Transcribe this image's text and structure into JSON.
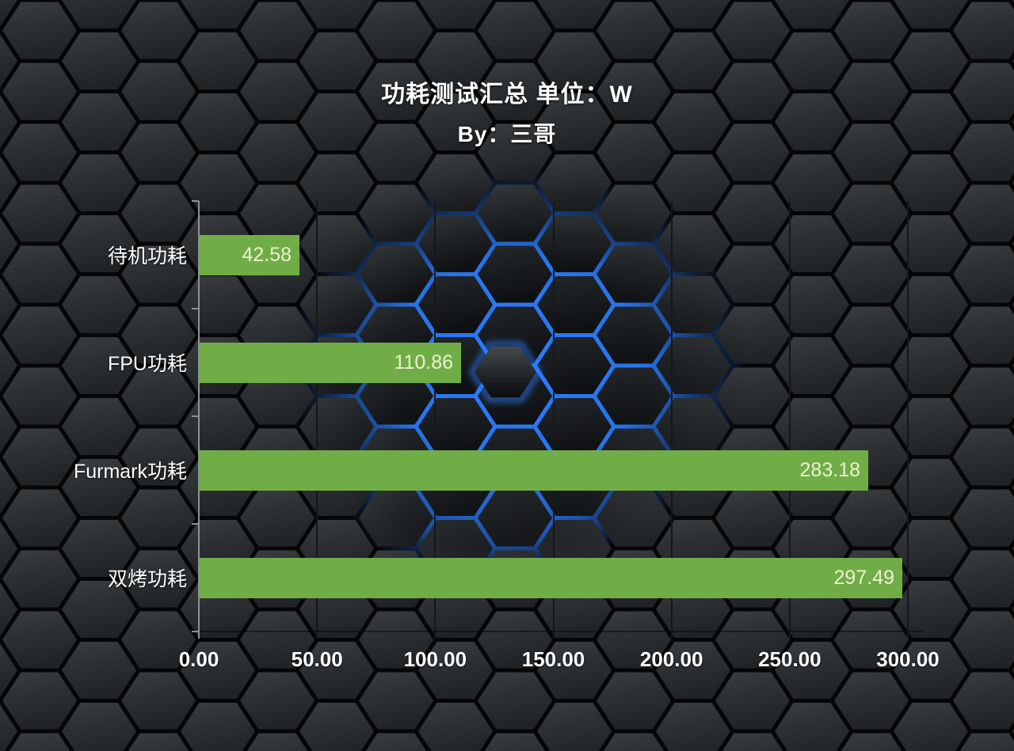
{
  "title": "功耗测试汇总 单位：W",
  "subtitle": "By：三哥",
  "chart_data": {
    "type": "bar",
    "orientation": "horizontal",
    "title": "功耗测试汇总 单位：W",
    "byline": "By：三哥",
    "unit": "W",
    "categories": [
      "待机功耗",
      "FPU功耗",
      "Furmark功耗",
      "双烤功耗"
    ],
    "values": [
      42.58,
      110.86,
      283.18,
      297.49
    ],
    "value_labels": [
      "42.58",
      "110.86",
      "283.18",
      "297.49"
    ],
    "x_ticks": [
      {
        "value": 0,
        "label": "0.00"
      },
      {
        "value": 50,
        "label": "50.00"
      },
      {
        "value": 100,
        "label": "100.00"
      },
      {
        "value": 150,
        "label": "150.00"
      },
      {
        "value": 200,
        "label": "200.00"
      },
      {
        "value": 250,
        "label": "250.00"
      },
      {
        "value": 300,
        "label": "300.00"
      }
    ],
    "xlim": [
      0,
      300
    ],
    "grid": true,
    "legend": false,
    "colors": {
      "bar": "#70ad47",
      "value_label": "#eef1cf",
      "category_label": "#ffffff",
      "tick_label": "#ffffff",
      "title": "#ffffff",
      "axis": "#8e9294",
      "gridline": "#15171a",
      "background_hex_face": "#2d3134",
      "background_gap": "#060607",
      "glow_blue": "#2b7dff"
    }
  }
}
